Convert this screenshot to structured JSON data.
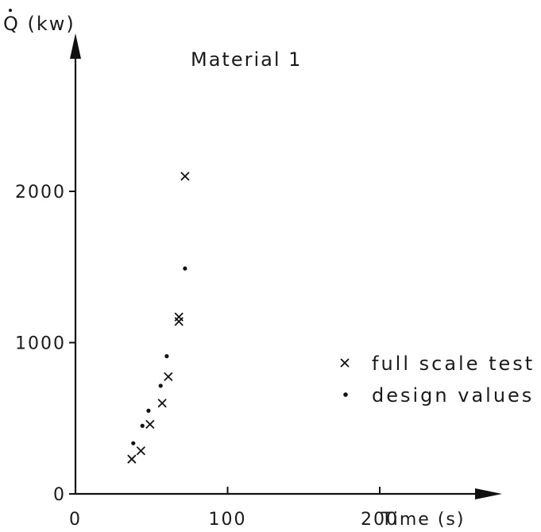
{
  "chart_data": {
    "type": "scatter",
    "title": "Material 1",
    "xlabel": "Time (s)",
    "ylabel": "Q (kw)",
    "xlim": [
      0,
      270
    ],
    "ylim": [
      0,
      2800
    ],
    "x_ticks": [
      {
        "value": 0,
        "label": "0"
      },
      {
        "value": 100,
        "label": "100"
      },
      {
        "value": 200,
        "label": "200"
      }
    ],
    "y_ticks": [
      {
        "value": 0,
        "label": "0"
      },
      {
        "value": 1000,
        "label": "1000"
      },
      {
        "value": 2000,
        "label": "2000"
      }
    ],
    "grid": false,
    "legend_position": "right",
    "series": [
      {
        "name": "full scale test",
        "marker": "cross",
        "points": [
          {
            "x": 37,
            "y": 230
          },
          {
            "x": 43,
            "y": 285
          },
          {
            "x": 49,
            "y": 460
          },
          {
            "x": 57,
            "y": 600
          },
          {
            "x": 61,
            "y": 775
          },
          {
            "x": 68,
            "y": 1140
          },
          {
            "x": 68,
            "y": 1170
          },
          {
            "x": 72,
            "y": 2100
          }
        ]
      },
      {
        "name": "design values",
        "marker": "dot",
        "points": [
          {
            "x": 38,
            "y": 335
          },
          {
            "x": 44,
            "y": 450
          },
          {
            "x": 48,
            "y": 550
          },
          {
            "x": 56,
            "y": 715
          },
          {
            "x": 60,
            "y": 910
          },
          {
            "x": 72,
            "y": 1490
          }
        ]
      }
    ]
  }
}
